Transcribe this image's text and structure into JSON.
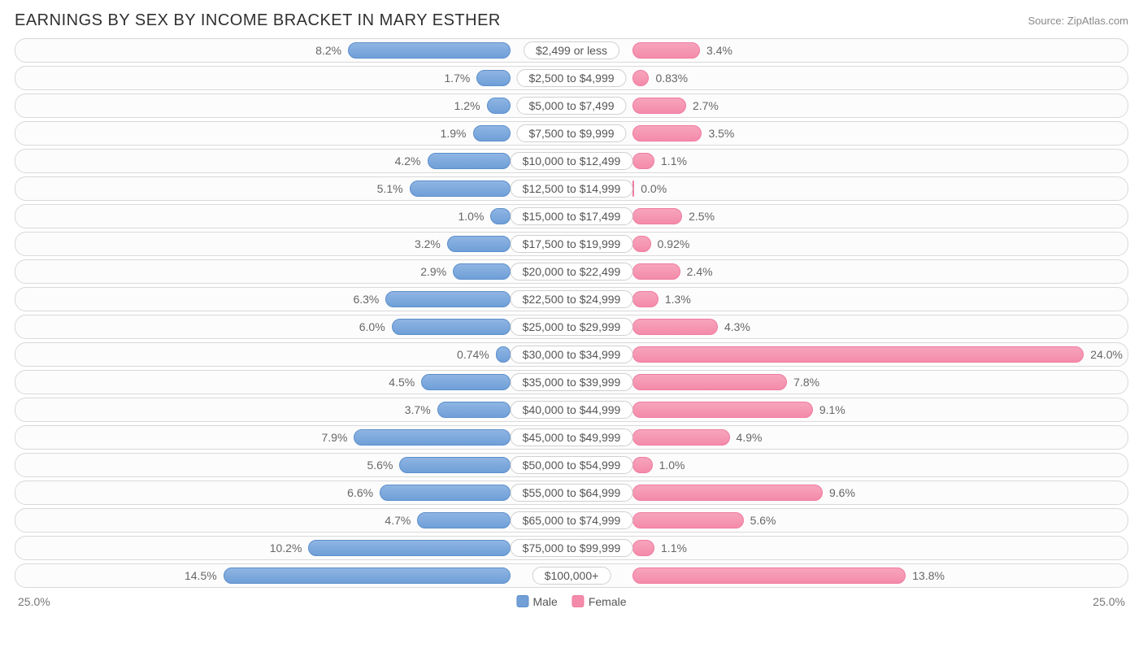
{
  "title": "EARNINGS BY SEX BY INCOME BRACKET IN MARY ESTHER",
  "source": "Source: ZipAtlas.com",
  "axis_max": 25.0,
  "axis_label_left": "25.0%",
  "axis_label_right": "25.0%",
  "legend": {
    "male": "Male",
    "female": "Female"
  },
  "colors": {
    "male_fill": "#719fd6",
    "female_fill": "#f48bab",
    "row_border": "#d9d9d9",
    "text": "#666666"
  },
  "rows": [
    {
      "label": "$2,499 or less",
      "male": 8.2,
      "male_label": "8.2%",
      "female": 3.4,
      "female_label": "3.4%"
    },
    {
      "label": "$2,500 to $4,999",
      "male": 1.7,
      "male_label": "1.7%",
      "female": 0.83,
      "female_label": "0.83%"
    },
    {
      "label": "$5,000 to $7,499",
      "male": 1.2,
      "male_label": "1.2%",
      "female": 2.7,
      "female_label": "2.7%"
    },
    {
      "label": "$7,500 to $9,999",
      "male": 1.9,
      "male_label": "1.9%",
      "female": 3.5,
      "female_label": "3.5%"
    },
    {
      "label": "$10,000 to $12,499",
      "male": 4.2,
      "male_label": "4.2%",
      "female": 1.1,
      "female_label": "1.1%"
    },
    {
      "label": "$12,500 to $14,999",
      "male": 5.1,
      "male_label": "5.1%",
      "female": 0.0,
      "female_label": "0.0%"
    },
    {
      "label": "$15,000 to $17,499",
      "male": 1.0,
      "male_label": "1.0%",
      "female": 2.5,
      "female_label": "2.5%"
    },
    {
      "label": "$17,500 to $19,999",
      "male": 3.2,
      "male_label": "3.2%",
      "female": 0.92,
      "female_label": "0.92%"
    },
    {
      "label": "$20,000 to $22,499",
      "male": 2.9,
      "male_label": "2.9%",
      "female": 2.4,
      "female_label": "2.4%"
    },
    {
      "label": "$22,500 to $24,999",
      "male": 6.3,
      "male_label": "6.3%",
      "female": 1.3,
      "female_label": "1.3%"
    },
    {
      "label": "$25,000 to $29,999",
      "male": 6.0,
      "male_label": "6.0%",
      "female": 4.3,
      "female_label": "4.3%"
    },
    {
      "label": "$30,000 to $34,999",
      "male": 0.74,
      "male_label": "0.74%",
      "female": 24.0,
      "female_label": "24.0%"
    },
    {
      "label": "$35,000 to $39,999",
      "male": 4.5,
      "male_label": "4.5%",
      "female": 7.8,
      "female_label": "7.8%"
    },
    {
      "label": "$40,000 to $44,999",
      "male": 3.7,
      "male_label": "3.7%",
      "female": 9.1,
      "female_label": "9.1%"
    },
    {
      "label": "$45,000 to $49,999",
      "male": 7.9,
      "male_label": "7.9%",
      "female": 4.9,
      "female_label": "4.9%"
    },
    {
      "label": "$50,000 to $54,999",
      "male": 5.6,
      "male_label": "5.6%",
      "female": 1.0,
      "female_label": "1.0%"
    },
    {
      "label": "$55,000 to $64,999",
      "male": 6.6,
      "male_label": "6.6%",
      "female": 9.6,
      "female_label": "9.6%"
    },
    {
      "label": "$65,000 to $74,999",
      "male": 4.7,
      "male_label": "4.7%",
      "female": 5.6,
      "female_label": "5.6%"
    },
    {
      "label": "$75,000 to $99,999",
      "male": 10.2,
      "male_label": "10.2%",
      "female": 1.1,
      "female_label": "1.1%"
    },
    {
      "label": "$100,000+",
      "male": 14.5,
      "male_label": "14.5%",
      "female": 13.8,
      "female_label": "13.8%"
    }
  ]
}
